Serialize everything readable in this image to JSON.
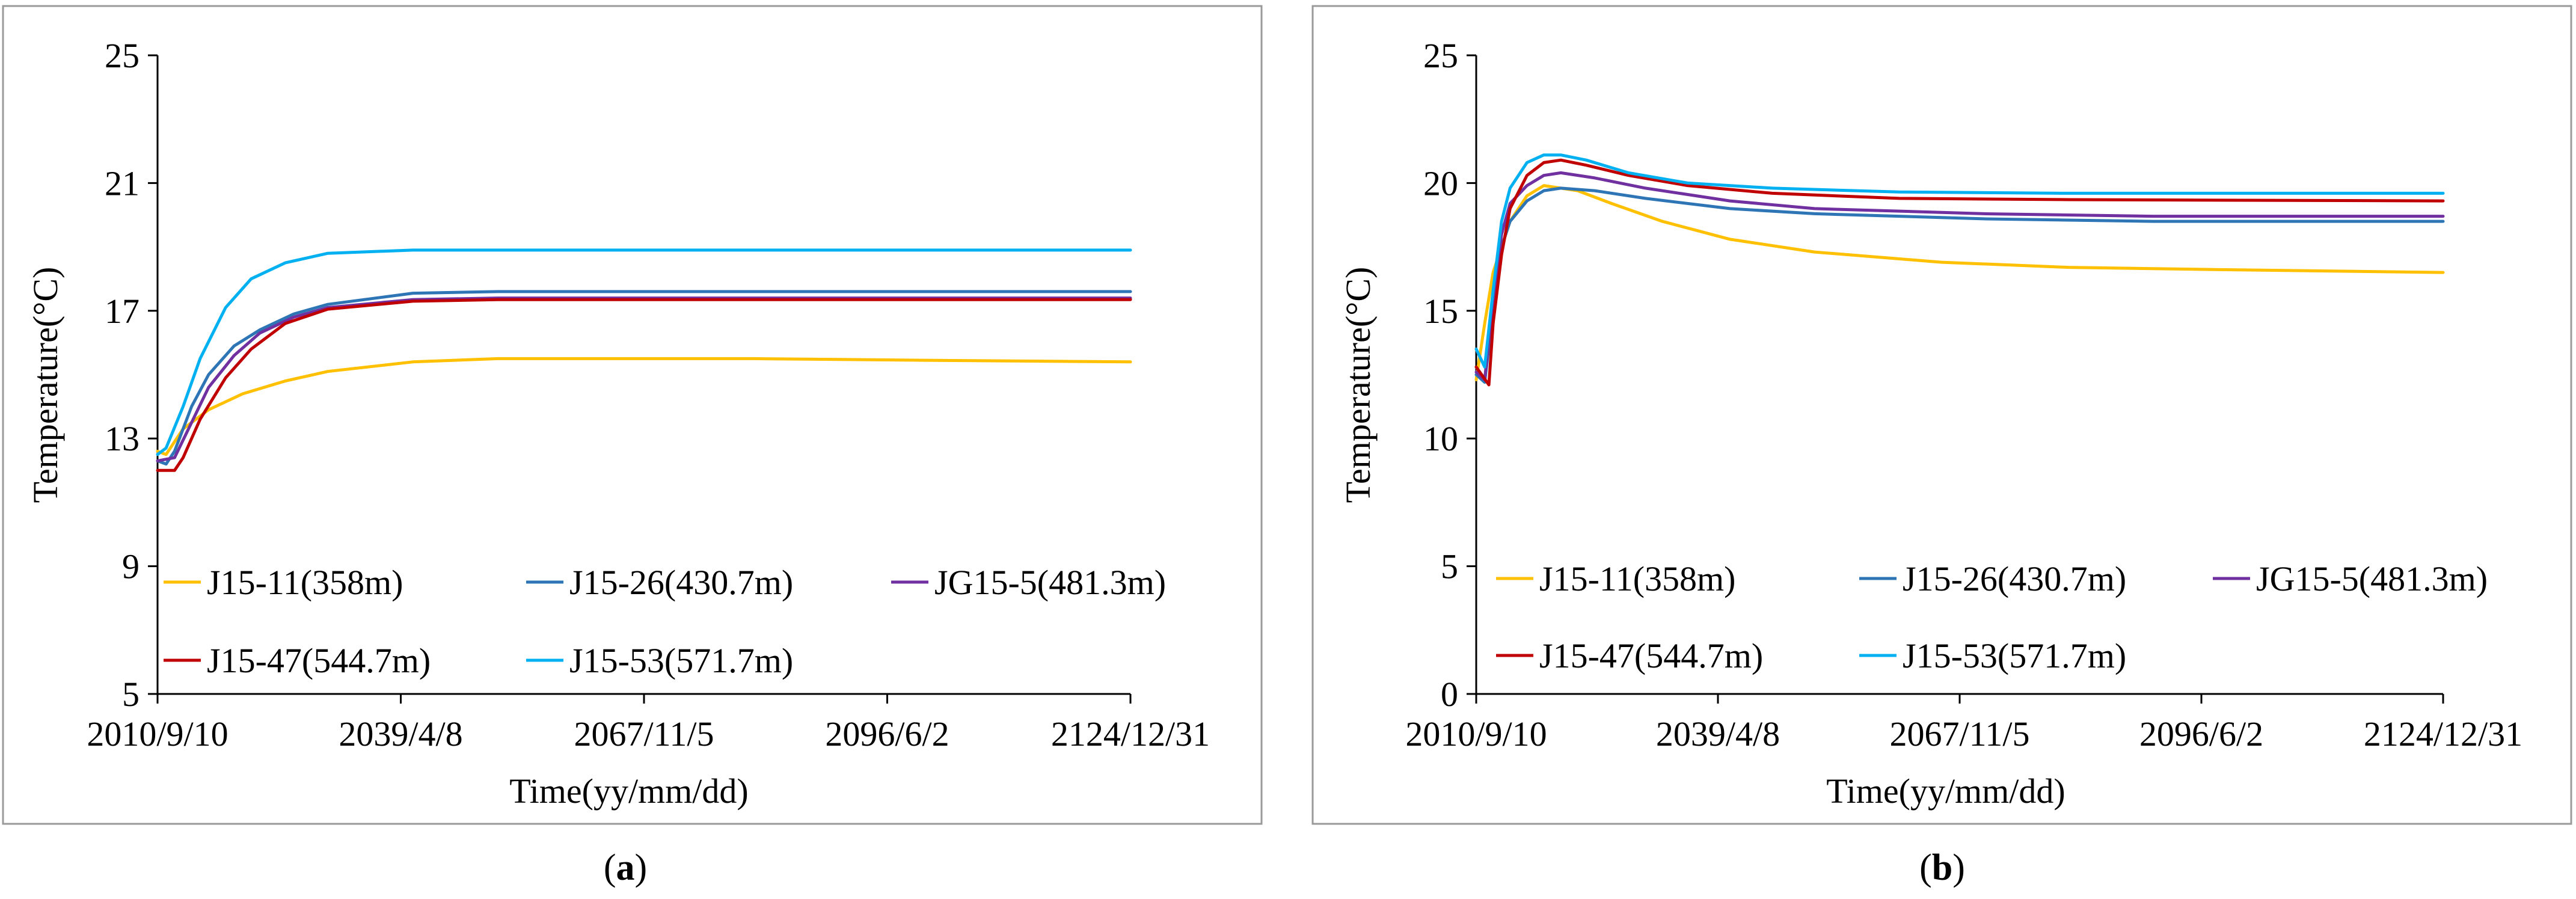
{
  "chart_data": [
    {
      "type": "line",
      "panel_label": "a",
      "xlabel": "Time(yy/mm/dd)",
      "ylabel": "Temperature(°C)",
      "ylim": [
        5,
        25
      ],
      "yticks": [
        "5",
        "9",
        "13",
        "17",
        "21",
        "25"
      ],
      "xticks": [
        "2010/9/10",
        "2039/4/8",
        "2067/11/5",
        "2096/6/2",
        "2124/12/31"
      ],
      "x_unit": "years since 2010/9/10",
      "xlim": [
        0,
        114.3
      ],
      "legend_location": "inside lower-left",
      "series": [
        {
          "name": "J15-11(358m)",
          "color": "#FFC000",
          "x": [
            0,
            1,
            3,
            6,
            10,
            15,
            20,
            30,
            40,
            55,
            70,
            90,
            114.3
          ],
          "y": [
            12.6,
            12.5,
            13.3,
            13.9,
            14.4,
            14.8,
            15.1,
            15.4,
            15.5,
            15.5,
            15.5,
            15.45,
            15.4
          ]
        },
        {
          "name": "J15-26(430.7m)",
          "color": "#2E75B6",
          "x": [
            0,
            1,
            2,
            4,
            6,
            9,
            12,
            16,
            20,
            30,
            40,
            60,
            80,
            114.3
          ],
          "y": [
            12.3,
            12.2,
            12.6,
            14.0,
            15.0,
            15.9,
            16.4,
            16.9,
            17.2,
            17.55,
            17.6,
            17.6,
            17.6,
            17.6
          ]
        },
        {
          "name": "JG15-5(481.3m)",
          "color": "#7030A0",
          "x": [
            0,
            2,
            4,
            6,
            9,
            12,
            16,
            20,
            30,
            40,
            60,
            114.3
          ],
          "y": [
            12.3,
            12.4,
            13.5,
            14.6,
            15.6,
            16.3,
            16.8,
            17.1,
            17.35,
            17.4,
            17.4,
            17.4
          ]
        },
        {
          "name": "J15-47(544.7m)",
          "color": "#C00000",
          "x": [
            0,
            2,
            3,
            5,
            8,
            11,
            15,
            20,
            30,
            40,
            60,
            114.3
          ],
          "y": [
            12.0,
            12.0,
            12.4,
            13.6,
            14.9,
            15.8,
            16.6,
            17.05,
            17.3,
            17.35,
            17.35,
            17.35
          ]
        },
        {
          "name": "J15-53(571.7m)",
          "color": "#00B0F0",
          "x": [
            0,
            1,
            3,
            5,
            8,
            11,
            15,
            20,
            30,
            40,
            60,
            114.3
          ],
          "y": [
            12.5,
            12.7,
            14.0,
            15.5,
            17.1,
            18.0,
            18.5,
            18.8,
            18.9,
            18.9,
            18.9,
            18.9
          ]
        }
      ]
    },
    {
      "type": "line",
      "panel_label": "b",
      "xlabel": "Time(yy/mm/dd)",
      "ylabel": "Temperature(°C)",
      "ylim": [
        0,
        25
      ],
      "yticks": [
        "0",
        "5",
        "10",
        "15",
        "20",
        "25"
      ],
      "xticks": [
        "2010/9/10",
        "2039/4/8",
        "2067/11/5",
        "2096/6/2",
        "2124/12/31"
      ],
      "x_unit": "years since 2010/9/10",
      "xlim": [
        0,
        114.3
      ],
      "legend_location": "inside lower-left",
      "series": [
        {
          "name": "J15-11(358m)",
          "color": "#FFC000",
          "x": [
            0,
            1,
            2,
            4,
            6,
            8,
            12,
            16,
            22,
            30,
            40,
            55,
            70,
            90,
            114.3
          ],
          "y": [
            12.3,
            14.5,
            16.5,
            18.5,
            19.5,
            19.9,
            19.7,
            19.2,
            18.5,
            17.8,
            17.3,
            16.9,
            16.7,
            16.6,
            16.5
          ]
        },
        {
          "name": "J15-26(430.7m)",
          "color": "#2E75B6",
          "x": [
            0,
            1,
            2,
            3,
            4,
            6,
            8,
            10,
            14,
            20,
            30,
            40,
            60,
            80,
            114.3
          ],
          "y": [
            12.5,
            12.2,
            15.0,
            17.5,
            18.5,
            19.3,
            19.7,
            19.8,
            19.7,
            19.4,
            19.0,
            18.8,
            18.6,
            18.5,
            18.5
          ]
        },
        {
          "name": "JG15-5(481.3m)",
          "color": "#7030A0",
          "x": [
            0,
            1,
            2,
            3,
            4,
            6,
            8,
            10,
            14,
            20,
            30,
            40,
            60,
            80,
            114.3
          ],
          "y": [
            12.6,
            12.3,
            15.5,
            18.0,
            19.2,
            19.9,
            20.3,
            20.4,
            20.2,
            19.8,
            19.3,
            19.0,
            18.8,
            18.7,
            18.7
          ]
        },
        {
          "name": "J15-47(544.7m)",
          "color": "#C00000",
          "x": [
            0,
            1.5,
            2,
            3,
            4,
            6,
            8,
            10,
            13,
            18,
            25,
            35,
            50,
            70,
            114.3
          ],
          "y": [
            12.8,
            12.1,
            14.5,
            17.2,
            19.0,
            20.3,
            20.8,
            20.9,
            20.7,
            20.3,
            19.9,
            19.6,
            19.4,
            19.35,
            19.3
          ]
        },
        {
          "name": "J15-53(571.7m)",
          "color": "#00B0F0",
          "x": [
            0,
            1,
            2,
            3,
            4,
            6,
            8,
            10,
            13,
            18,
            25,
            35,
            50,
            70,
            114.3
          ],
          "y": [
            13.5,
            12.8,
            15.8,
            18.5,
            19.8,
            20.8,
            21.1,
            21.1,
            20.9,
            20.4,
            20.0,
            19.8,
            19.65,
            19.6,
            19.6
          ]
        }
      ]
    }
  ]
}
